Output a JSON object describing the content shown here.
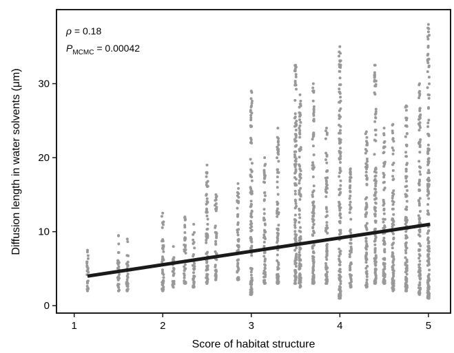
{
  "chart_data": {
    "type": "scatter",
    "xlabel": "Score of habitat structure",
    "ylabel": "Diffusion length in water solvents (μm)",
    "xlim": [
      0.8,
      5.25
    ],
    "ylim": [
      -1,
      40
    ],
    "xticks": [
      1,
      2,
      3,
      4,
      5
    ],
    "yticks": [
      0,
      10,
      20,
      30
    ],
    "grid": false,
    "annotations": {
      "rho_symbol": "ρ",
      "rho_value": " = 0.18",
      "p_symbol": "P",
      "p_subscript": "MCMC",
      "p_value": " = 0.00042"
    },
    "point_color": "#999999",
    "trend_color": "#1a1a1a",
    "trend_line": {
      "x": [
        1.15,
        5.02
      ],
      "y": [
        4.0,
        11.0
      ]
    },
    "columns": [
      {
        "x": 1.15,
        "min": 2.0,
        "max": 7.5
      },
      {
        "x": 1.5,
        "min": 2.0,
        "max": 9.5
      },
      {
        "x": 1.6,
        "min": 2.0,
        "max": 9.0
      },
      {
        "x": 2.0,
        "min": 2.0,
        "max": 12.5
      },
      {
        "x": 2.12,
        "min": 2.5,
        "max": 8.0
      },
      {
        "x": 2.25,
        "min": 3.0,
        "max": 12.0
      },
      {
        "x": 2.35,
        "min": 2.5,
        "max": 11.0
      },
      {
        "x": 2.5,
        "min": 3.0,
        "max": 19.0
      },
      {
        "x": 2.6,
        "min": 3.5,
        "max": 15.0
      },
      {
        "x": 2.85,
        "min": 3.5,
        "max": 16.5
      },
      {
        "x": 3.0,
        "min": 1.5,
        "max": 29.0
      },
      {
        "x": 3.15,
        "min": 3.0,
        "max": 20.0
      },
      {
        "x": 3.3,
        "min": 3.0,
        "max": 24.0
      },
      {
        "x": 3.5,
        "min": 3.0,
        "max": 32.5
      },
      {
        "x": 3.55,
        "min": 2.5,
        "max": 28.5
      },
      {
        "x": 3.7,
        "min": 3.0,
        "max": 30.0
      },
      {
        "x": 3.85,
        "min": 3.0,
        "max": 24.0
      },
      {
        "x": 4.0,
        "min": 1.0,
        "max": 35.0
      },
      {
        "x": 4.12,
        "min": 2.5,
        "max": 18.5
      },
      {
        "x": 4.3,
        "min": 2.5,
        "max": 23.5
      },
      {
        "x": 4.4,
        "min": 3.0,
        "max": 32.5
      },
      {
        "x": 4.5,
        "min": 3.0,
        "max": 24.0
      },
      {
        "x": 4.6,
        "min": 2.0,
        "max": 24.5
      },
      {
        "x": 4.75,
        "min": 2.0,
        "max": 27.0
      },
      {
        "x": 4.9,
        "min": 1.5,
        "max": 30.0
      },
      {
        "x": 5.0,
        "min": 1.0,
        "max": 38.0
      }
    ]
  }
}
